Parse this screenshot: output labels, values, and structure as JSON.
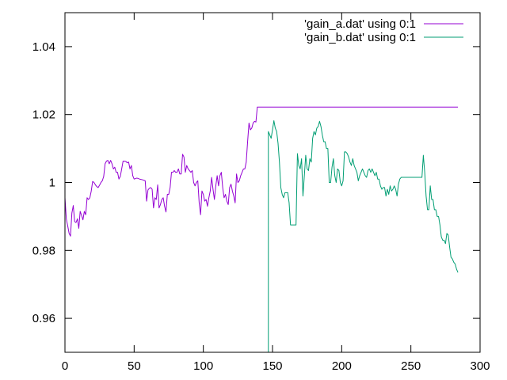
{
  "chart_data": {
    "type": "line",
    "title": "",
    "xlabel": "",
    "ylabel": "",
    "xlim": [
      0,
      300
    ],
    "ylim": [
      0.95,
      1.05
    ],
    "xticks": [
      0,
      50,
      100,
      150,
      200,
      250,
      300
    ],
    "xtick_labels": [
      "0",
      "50",
      "100",
      "150",
      "200",
      "250",
      "300"
    ],
    "yticks": [
      0.96,
      0.98,
      1.0,
      1.02,
      1.04
    ],
    "ytick_labels": [
      "0.96",
      "0.98",
      "1",
      "1.02",
      "1.04"
    ],
    "grid": false,
    "legend_position": "top-right",
    "series": [
      {
        "name": "'gain_a.dat' using 0:1",
        "color": "#9400d3",
        "points": [
          [
            0,
            0.9955
          ],
          [
            1,
            0.9892
          ],
          [
            2,
            0.9872
          ],
          [
            3,
            0.985
          ],
          [
            4,
            0.9842
          ],
          [
            5,
            0.991
          ],
          [
            6,
            0.9932
          ],
          [
            7,
            0.9885
          ],
          [
            8,
            0.9882
          ],
          [
            9,
            0.9893
          ],
          [
            10,
            0.9865
          ],
          [
            11,
            0.9915
          ],
          [
            12,
            0.9903
          ],
          [
            13,
            0.989
          ],
          [
            14,
            0.9915
          ],
          [
            15,
            0.9905
          ],
          [
            16,
            0.9955
          ],
          [
            17,
            0.995
          ],
          [
            18,
            0.9955
          ],
          [
            19,
            0.9975
          ],
          [
            20,
            1.0003
          ],
          [
            21,
            1.0
          ],
          [
            22,
            0.9993
          ],
          [
            23,
            0.9988
          ],
          [
            24,
            0.9985
          ],
          [
            25,
            0.9992
          ],
          [
            26,
            1.0
          ],
          [
            27,
            1.0005
          ],
          [
            28,
            1.0018
          ],
          [
            29,
            1.0055
          ],
          [
            30,
            1.0063
          ],
          [
            31,
            1.0065
          ],
          [
            32,
            1.0055
          ],
          [
            33,
            1.0065
          ],
          [
            34,
            1.0055
          ],
          [
            35,
            1.004
          ],
          [
            36,
            1.0045
          ],
          [
            37,
            1.003
          ],
          [
            38,
            1.003
          ],
          [
            39,
            1.001
          ],
          [
            40,
            1.0018
          ],
          [
            41,
            1.004
          ],
          [
            42,
            1.0063
          ],
          [
            43,
            1.0063
          ],
          [
            44,
            1.0062
          ],
          [
            45,
            1.0058
          ],
          [
            46,
            1.006
          ],
          [
            47,
            1.004
          ],
          [
            48,
            1.005
          ],
          [
            49,
            1.002
          ],
          [
            50,
            1.001
          ],
          [
            52,
            1.0013
          ],
          [
            54,
            1.001
          ],
          [
            56,
            1.0008
          ],
          [
            58,
            1.0005
          ],
          [
            59,
            0.9945
          ],
          [
            60,
            0.9978
          ],
          [
            61,
            0.9983
          ],
          [
            62,
            0.9985
          ],
          [
            63,
            0.998
          ],
          [
            64,
            0.9925
          ],
          [
            65,
            0.9955
          ],
          [
            66,
            0.995
          ],
          [
            67,
            0.9993
          ],
          [
            68,
            0.9925
          ],
          [
            69,
            0.9935
          ],
          [
            70,
            0.995
          ],
          [
            71,
            0.9955
          ],
          [
            72,
            0.993
          ],
          [
            73,
            0.9913
          ],
          [
            74,
            0.9965
          ],
          [
            75,
            0.9965
          ],
          [
            76,
            0.9985
          ],
          [
            77,
            1.003
          ],
          [
            78,
            1.003
          ],
          [
            79,
            1.0035
          ],
          [
            80,
            1.003
          ],
          [
            81,
            1.003
          ],
          [
            82,
            1.004
          ],
          [
            83,
            1.0025
          ],
          [
            84,
            1.0025
          ],
          [
            85,
            1.0083
          ],
          [
            86,
            1.0075
          ],
          [
            87,
            1.003
          ],
          [
            88,
            1.005
          ],
          [
            89,
            1.004
          ],
          [
            90,
            1.0035
          ],
          [
            91,
            1.003
          ],
          [
            92,
            1.0035
          ],
          [
            93,
            1.0
          ],
          [
            94,
            0.999
          ],
          [
            95,
            1.0
          ],
          [
            96,
            1.0005
          ],
          [
            97,
            0.994
          ],
          [
            98,
            0.9905
          ],
          [
            99,
            0.9975
          ],
          [
            100,
            0.9965
          ],
          [
            101,
            0.9945
          ],
          [
            102,
            0.995
          ],
          [
            103,
            0.993
          ],
          [
            104,
            0.9955
          ],
          [
            105,
            0.9975
          ],
          [
            106,
            1.0015
          ],
          [
            107,
            0.998
          ],
          [
            108,
            0.995
          ],
          [
            109,
            0.999
          ],
          [
            110,
            1.002
          ],
          [
            111,
            0.999
          ],
          [
            112,
            1.002
          ],
          [
            113,
            1.003
          ],
          [
            114,
            0.9985
          ],
          [
            115,
            0.9955
          ],
          [
            116,
            0.9965
          ],
          [
            117,
            0.9945
          ],
          [
            118,
            0.9935
          ],
          [
            119,
            0.9985
          ],
          [
            120,
            0.9995
          ],
          [
            121,
            0.9975
          ],
          [
            122,
            0.996
          ],
          [
            123,
            0.994
          ],
          [
            124,
            1.0025
          ],
          [
            125,
            1.0
          ],
          [
            126,
            1.0005
          ],
          [
            127,
            1.002
          ],
          [
            128,
            1.003
          ],
          [
            129,
            1.004
          ],
          [
            130,
            1.004
          ],
          [
            131,
            1.006
          ],
          [
            132,
            1.012
          ],
          [
            133,
            1.0175
          ],
          [
            134,
            1.0155
          ],
          [
            135,
            1.016
          ],
          [
            136,
            1.0175
          ],
          [
            137,
            1.018
          ],
          [
            138,
            1.0178
          ],
          [
            139,
            1.0222
          ],
          [
            284,
            1.0222
          ]
        ]
      },
      {
        "name": "'gain_b.dat' using 0:1",
        "color": "#009e73",
        "points": [
          [
            147,
            0.95
          ],
          [
            147,
            1.015
          ],
          [
            148,
            1.014
          ],
          [
            149,
            1.013
          ],
          [
            150,
            1.0155
          ],
          [
            151,
            1.0182
          ],
          [
            152,
            1.016
          ],
          [
            153,
            1.015
          ],
          [
            154,
            1.0115
          ],
          [
            155,
            1.006
          ],
          [
            156,
            0.9985
          ],
          [
            157,
            0.9965
          ],
          [
            158,
            0.9955
          ],
          [
            159,
            0.997
          ],
          [
            160,
            0.997
          ],
          [
            161,
            0.997
          ],
          [
            162,
            0.994
          ],
          [
            163,
            0.9875
          ],
          [
            164,
            0.9875
          ],
          [
            165,
            0.9875
          ],
          [
            166,
            0.9875
          ],
          [
            167,
            0.9875
          ],
          [
            168,
            1.0085
          ],
          [
            169,
            1.005
          ],
          [
            170,
            1.004
          ],
          [
            171,
            1.007
          ],
          [
            172,
            0.996
          ],
          [
            173,
            1.002
          ],
          [
            174,
            1.008
          ],
          [
            175,
            1.004
          ],
          [
            176,
            1.0035
          ],
          [
            177,
            1.007
          ],
          [
            178,
            1.006
          ],
          [
            179,
            1.013
          ],
          [
            180,
            1.015
          ],
          [
            181,
            1.014
          ],
          [
            182,
            1.016
          ],
          [
            183,
            1.0165
          ],
          [
            184,
            1.018
          ],
          [
            185,
            1.0165
          ],
          [
            186,
            1.014
          ],
          [
            187,
            1.012
          ],
          [
            188,
            1.012
          ],
          [
            189,
            1.01
          ],
          [
            190,
            1.01
          ],
          [
            191,
            1.0
          ],
          [
            192,
            1.0
          ],
          [
            193,
            1.0045
          ],
          [
            194,
            1.007
          ],
          [
            195,
            1.002
          ],
          [
            196,
            1.0
          ],
          [
            197,
            1.004
          ],
          [
            198,
            1.0035
          ],
          [
            199,
            1.0
          ],
          [
            200,
            0.999
          ],
          [
            201,
            1.0005
          ],
          [
            202,
            1.009
          ],
          [
            203,
            1.009
          ],
          [
            204,
            1.0085
          ],
          [
            205,
            1.0075
          ],
          [
            206,
            1.006
          ],
          [
            207,
            1.005
          ],
          [
            208,
            1.007
          ],
          [
            209,
            1.005
          ],
          [
            210,
            1.004
          ],
          [
            211,
            1.003
          ],
          [
            212,
            1.0005
          ],
          [
            213,
            1.002
          ],
          [
            214,
            1.003
          ],
          [
            215,
            1.004
          ],
          [
            216,
            1.003
          ],
          [
            217,
            1.002
          ],
          [
            218,
            1.0015
          ],
          [
            219,
            1.0035
          ],
          [
            220,
            1.004
          ],
          [
            221,
            1.003
          ],
          [
            222,
            1.004
          ],
          [
            223,
            1.003
          ],
          [
            224,
            1.002
          ],
          [
            225,
            1.003
          ],
          [
            226,
            1.001
          ],
          [
            227,
            1.001
          ],
          [
            228,
            0.999
          ],
          [
            229,
            0.998
          ],
          [
            230,
            0.9985
          ],
          [
            231,
            0.9985
          ],
          [
            232,
            0.996
          ],
          [
            233,
            0.998
          ],
          [
            234,
            0.9965
          ],
          [
            235,
            0.999
          ],
          [
            236,
            0.9975
          ],
          [
            237,
            0.998
          ],
          [
            238,
            0.999
          ],
          [
            239,
            0.998
          ],
          [
            240,
            0.996
          ],
          [
            241,
            0.9995
          ],
          [
            242,
            1.001
          ],
          [
            243,
            1.0015
          ],
          [
            244,
            1.0015
          ],
          [
            246,
            1.0015
          ],
          [
            248,
            1.0015
          ],
          [
            250,
            1.0015
          ],
          [
            252,
            1.0015
          ],
          [
            254,
            1.0015
          ],
          [
            256,
            1.0015
          ],
          [
            258,
            1.0015
          ],
          [
            259,
            1.008
          ],
          [
            260,
            1.003
          ],
          [
            261,
            0.996
          ],
          [
            262,
            0.992
          ],
          [
            263,
            0.992
          ],
          [
            264,
            0.999
          ],
          [
            265,
            0.995
          ],
          [
            266,
            0.995
          ],
          [
            267,
            0.992
          ],
          [
            268,
            0.992
          ],
          [
            269,
            0.99
          ],
          [
            270,
            0.99
          ],
          [
            271,
            0.9875
          ],
          [
            272,
            0.984
          ],
          [
            273,
            0.983
          ],
          [
            274,
            0.983
          ],
          [
            275,
            0.982
          ],
          [
            276,
            0.985
          ],
          [
            277,
            0.9845
          ],
          [
            278,
            0.981
          ],
          [
            279,
            0.978
          ],
          [
            280,
            0.9775
          ],
          [
            281,
            0.9765
          ],
          [
            282,
            0.976
          ],
          [
            283,
            0.9745
          ],
          [
            284,
            0.9735
          ]
        ]
      }
    ]
  }
}
